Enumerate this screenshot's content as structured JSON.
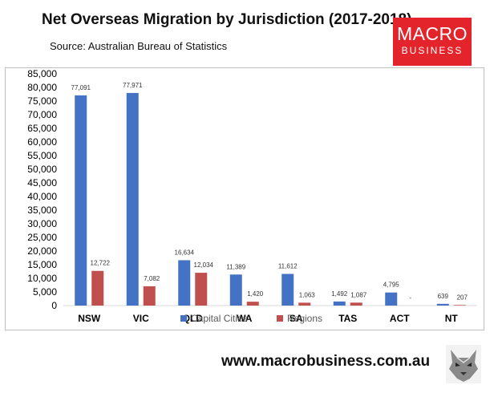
{
  "header": {
    "title": "Net Overseas Migration by Jurisdiction (2017-2018)",
    "source": "Source: Australian Bureau of Statistics"
  },
  "logo": {
    "line1": "MACRO",
    "line2": "BUSINESS"
  },
  "footer": {
    "website": "www.macrobusiness.com.au"
  },
  "colors": {
    "capital": "#4472c4",
    "regions": "#c0504d",
    "logo": "#e3242b"
  },
  "chart_data": {
    "type": "bar",
    "title": "Net Overseas Migration by Jurisdiction (2017-2018)",
    "xlabel": "",
    "ylabel": "",
    "ylim": [
      0,
      85000
    ],
    "yticks": [
      0,
      5000,
      10000,
      15000,
      20000,
      25000,
      30000,
      35000,
      40000,
      45000,
      50000,
      55000,
      60000,
      65000,
      70000,
      75000,
      80000,
      85000
    ],
    "ytick_labels": [
      "0",
      "5,000",
      "10,000",
      "15,000",
      "20,000",
      "25,000",
      "30,000",
      "35,000",
      "40,000",
      "45,000",
      "50,000",
      "55,000",
      "60,000",
      "65,000",
      "70,000",
      "75,000",
      "80,000",
      "85,000"
    ],
    "categories": [
      "NSW",
      "VIC",
      "QLD",
      "WA",
      "SA",
      "TAS",
      "ACT",
      "NT"
    ],
    "series": [
      {
        "name": "Capital Cities",
        "values": [
          77091,
          77971,
          16634,
          11389,
          11612,
          1492,
          4795,
          639
        ],
        "labels": [
          "77,091",
          "77,971",
          "16,634",
          "11,389",
          "11,612",
          "1,492",
          "4,795",
          "639"
        ]
      },
      {
        "name": "Regions",
        "values": [
          12722,
          7082,
          12034,
          1420,
          1063,
          1087,
          0,
          207
        ],
        "labels": [
          "12,722",
          "7,082",
          "12,034",
          "1,420",
          "1,063",
          "1,087",
          "-",
          "207"
        ]
      }
    ],
    "legend": "bottom",
    "grid": false
  }
}
